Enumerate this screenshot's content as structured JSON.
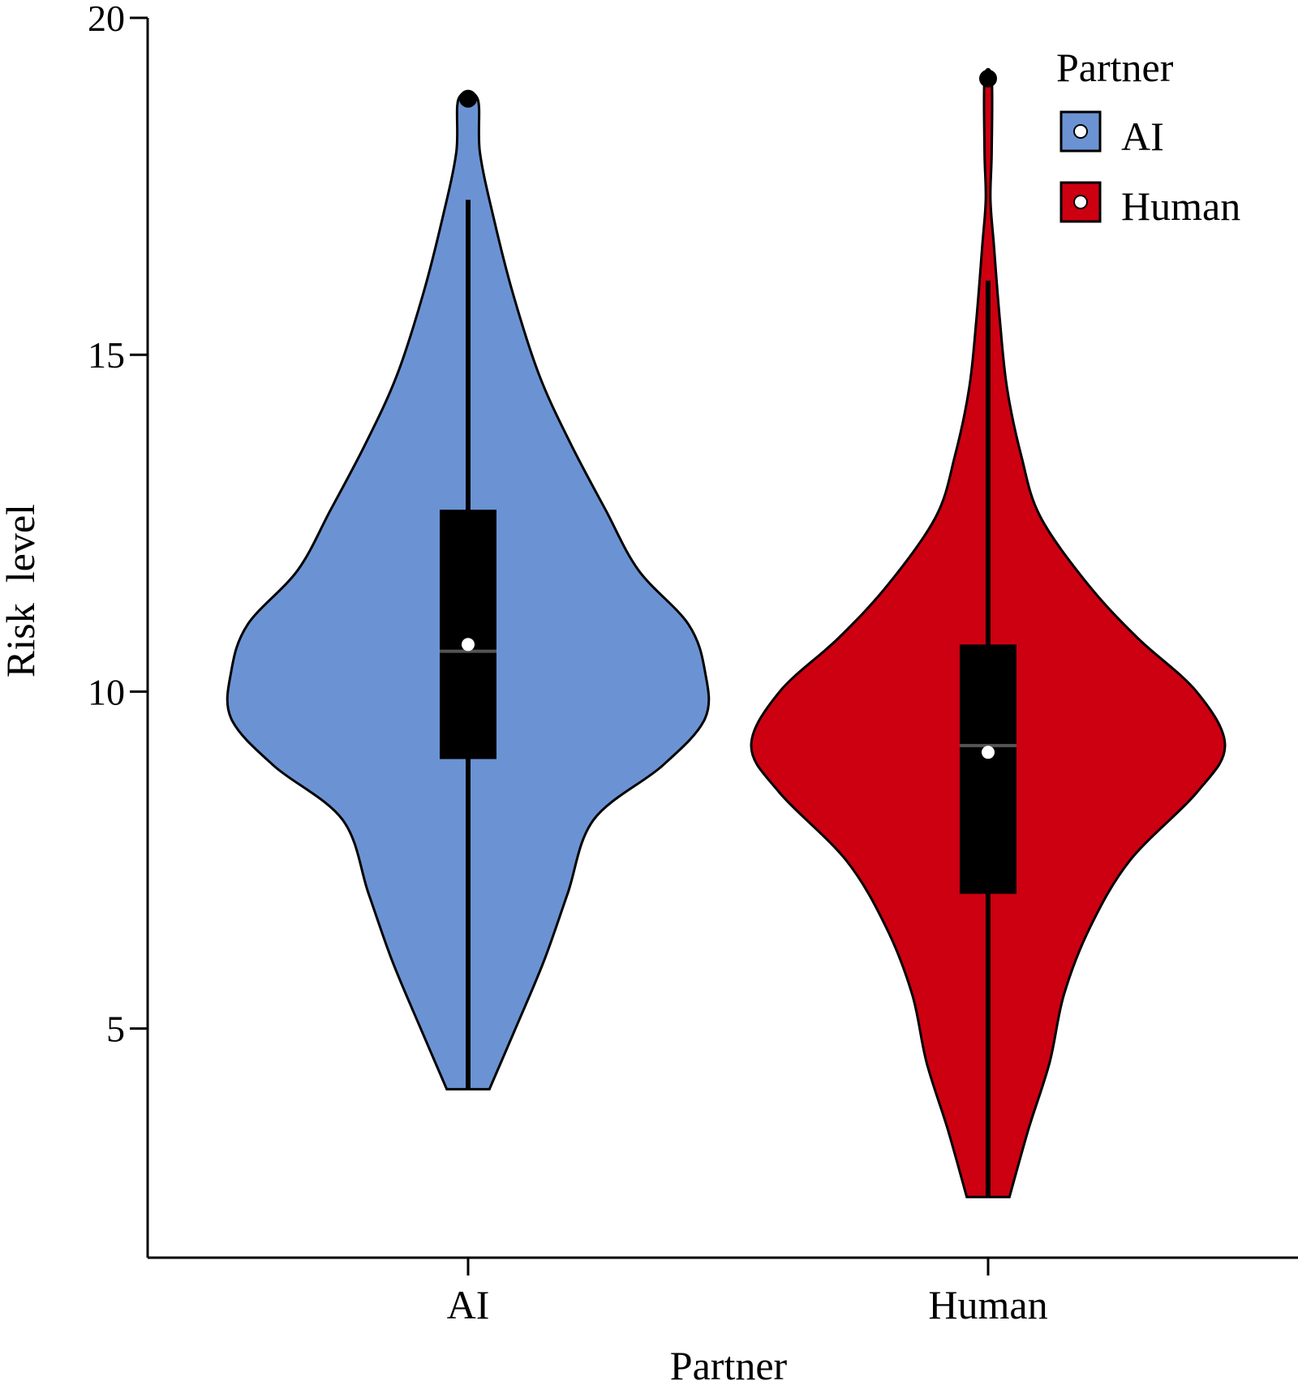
{
  "chart_data": {
    "type": "violin",
    "xlabel": "Partner",
    "ylabel": "Risk  level",
    "ylim": [
      1.6,
      20
    ],
    "yticks": [
      5,
      10,
      15,
      20
    ],
    "categories": [
      "AI",
      "Human"
    ],
    "legend": {
      "title": "Partner",
      "position": "top-right",
      "entries": [
        "AI",
        "Human"
      ]
    },
    "series": [
      {
        "category": "AI",
        "color": "#6b93d3",
        "min": 4.1,
        "max": 18.8,
        "q1": 9.0,
        "median": 10.6,
        "q3": 12.7,
        "mean": 10.7,
        "whisker_low": 4.1,
        "whisker_high": 17.3,
        "outliers": [
          18.8
        ],
        "density": [
          [
            4.1,
            0.09
          ],
          [
            5.0,
            0.2
          ],
          [
            6.0,
            0.32
          ],
          [
            7.0,
            0.42
          ],
          [
            8.1,
            0.53
          ],
          [
            8.9,
            0.82
          ],
          [
            9.6,
            1.0
          ],
          [
            10.3,
            1.0
          ],
          [
            11.0,
            0.93
          ],
          [
            11.8,
            0.72
          ],
          [
            12.7,
            0.58
          ],
          [
            13.7,
            0.43
          ],
          [
            14.7,
            0.3
          ],
          [
            15.9,
            0.19
          ],
          [
            17.0,
            0.11
          ],
          [
            18.0,
            0.05
          ],
          [
            18.8,
            0.04
          ]
        ]
      },
      {
        "category": "Human",
        "color": "#cc0011",
        "min": 2.5,
        "max": 19.1,
        "q1": 7.0,
        "median": 9.2,
        "q3": 10.7,
        "mean": 9.1,
        "whisker_low": 2.5,
        "whisker_high": 16.1,
        "outliers": [
          19.1
        ],
        "density": [
          [
            2.5,
            0.09
          ],
          [
            3.5,
            0.17
          ],
          [
            4.5,
            0.26
          ],
          [
            5.5,
            0.32
          ],
          [
            6.5,
            0.43
          ],
          [
            7.5,
            0.6
          ],
          [
            8.5,
            0.88
          ],
          [
            9.2,
            1.0
          ],
          [
            10.0,
            0.88
          ],
          [
            10.8,
            0.63
          ],
          [
            11.6,
            0.42
          ],
          [
            12.6,
            0.22
          ],
          [
            13.5,
            0.14
          ],
          [
            14.5,
            0.08
          ],
          [
            15.5,
            0.05
          ],
          [
            16.6,
            0.025
          ],
          [
            17.3,
            0.01
          ],
          [
            18.0,
            0.015
          ],
          [
            19.1,
            0.015
          ]
        ]
      }
    ]
  }
}
